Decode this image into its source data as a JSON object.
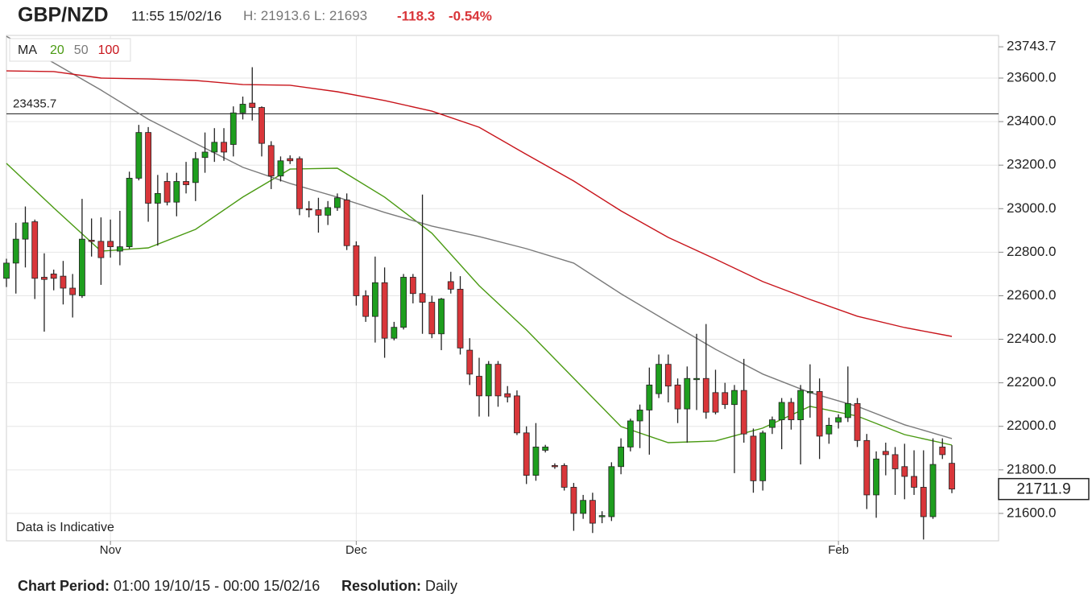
{
  "chart_data": {
    "type": "candlestick",
    "title": "GBP/NZD",
    "timestamp": "11:55 15/02/16",
    "high_prefix": "H:",
    "low_prefix": "L:",
    "change": -118.3,
    "change_pct": "-0.54%",
    "annotation": "Data is Indicative",
    "reference_line": 23435.7,
    "top_marker": 23743.7,
    "footer": {
      "period_label": "Chart Period:",
      "period": "01:00 19/10/15 - 00:00 15/02/16",
      "resolution_label": "Resolution:",
      "resolution": "Daily"
    },
    "categories": [
      null,
      null,
      null,
      null,
      null,
      null,
      null,
      null,
      null,
      null,
      null,
      "Nov",
      null,
      null,
      null,
      null,
      null,
      null,
      null,
      null,
      null,
      null,
      null,
      null,
      null,
      null,
      null,
      null,
      null,
      null,
      null,
      null,
      null,
      null,
      null,
      null,
      null,
      "Dec",
      null,
      null,
      null,
      null,
      null,
      null,
      null,
      null,
      null,
      null,
      null,
      null,
      null,
      null,
      null,
      null,
      null,
      null,
      null,
      null,
      null,
      null,
      null,
      null,
      null,
      null,
      null,
      null,
      null,
      null,
      null,
      null,
      null,
      null,
      null,
      null,
      null,
      null,
      null,
      null,
      null,
      null,
      null,
      null,
      null,
      null,
      null,
      null,
      null,
      null,
      "Feb",
      null,
      null,
      null,
      null,
      null,
      null,
      null,
      null,
      null,
      null,
      null,
      null
    ],
    "open": [
      22680,
      22750,
      22860,
      22940,
      22685,
      22700,
      22690,
      22635,
      22600,
      22855,
      22850,
      22850,
      22805,
      22825,
      23140,
      23350,
      23025,
      23125,
      23030,
      23125,
      23120,
      23235,
      23260,
      23305,
      23295,
      23440,
      23485,
      23465,
      23290,
      23150,
      23230,
      23230,
      23000,
      22995,
      22970,
      23005,
      23040,
      22830,
      22600,
      22505,
      22660,
      22405,
      22455,
      22685,
      22610,
      22570,
      22425,
      22665,
      22630,
      22350,
      22230,
      22140,
      22285,
      22150,
      22140,
      21970,
      21775,
      21890,
      21820,
      21820,
      21720,
      21600,
      21660,
      21585,
      21585,
      21815,
      21905,
      22025,
      22075,
      22150,
      22285,
      22190,
      22080,
      22215,
      22220,
      22155,
      22155,
      22100,
      22165,
      21955,
      21750,
      21995,
      22030,
      22110,
      22030,
      22160,
      22160,
      21965,
      22020,
      22040,
      22105,
      21935,
      21685,
      21885,
      21870,
      21815,
      21770,
      21720,
      21585,
      21905,
      21830.2
    ],
    "high": [
      22770,
      22935,
      23010,
      22950,
      22795,
      22720,
      22760,
      22700,
      23045,
      22955,
      22960,
      22950,
      22990,
      23170,
      23385,
      23375,
      23155,
      23165,
      23165,
      23215,
      23260,
      23350,
      23370,
      23370,
      23470,
      23515,
      23650,
      23470,
      23310,
      23240,
      23245,
      23240,
      23035,
      23050,
      23035,
      23070,
      23070,
      22850,
      22625,
      22780,
      22730,
      22480,
      22700,
      22700,
      23065,
      22600,
      22590,
      22710,
      22690,
      22405,
      22315,
      22300,
      22300,
      22185,
      22165,
      22000,
      22015,
      21915,
      21830,
      21830,
      21740,
      21685,
      21695,
      21610,
      21835,
      21945,
      22035,
      22100,
      22270,
      22330,
      22330,
      22220,
      22275,
      22425,
      22470,
      22260,
      22200,
      22190,
      22310,
      21990,
      21980,
      22045,
      22130,
      22130,
      22190,
      22285,
      22220,
      22040,
      22055,
      22275,
      22130,
      21965,
      21885,
      21925,
      21905,
      21920,
      21890,
      21890,
      21945,
      21945,
      21913.6
    ],
    "low": [
      22640,
      22610,
      22730,
      22585,
      22435,
      22625,
      22560,
      22500,
      22590,
      22780,
      22650,
      22775,
      22740,
      22815,
      23130,
      22940,
      22830,
      23015,
      22965,
      23070,
      23035,
      23165,
      23215,
      23220,
      23240,
      23410,
      23405,
      23240,
      23090,
      23125,
      23205,
      22970,
      22960,
      22890,
      22925,
      22990,
      22810,
      22555,
      22480,
      22385,
      22315,
      22395,
      22445,
      22565,
      22425,
      22405,
      22350,
      22610,
      22330,
      22190,
      22045,
      22045,
      22090,
      22110,
      21960,
      21735,
      21750,
      21880,
      21805,
      21705,
      21520,
      21575,
      21510,
      21555,
      21565,
      21780,
      21885,
      21900,
      21870,
      22130,
      22110,
      22015,
      21925,
      22075,
      22035,
      22055,
      22080,
      21785,
      21925,
      21695,
      21705,
      21965,
      21895,
      21985,
      21825,
      22040,
      21850,
      21920,
      21990,
      22020,
      21905,
      21620,
      21580,
      21775,
      21685,
      21665,
      21685,
      21480,
      21575,
      21850,
      21693
    ],
    "close": [
      22750,
      22860,
      22935,
      22680,
      22675,
      22680,
      22635,
      22605,
      22860,
      22850,
      22775,
      22825,
      22825,
      23140,
      23350,
      23025,
      23070,
      23030,
      23125,
      23110,
      23230,
      23260,
      23305,
      23260,
      23440,
      23480,
      23465,
      23300,
      23150,
      23220,
      23220,
      23000,
      22995,
      22970,
      23005,
      23050,
      22830,
      22600,
      22505,
      22660,
      22405,
      22455,
      22685,
      22610,
      22570,
      22425,
      22585,
      22630,
      22360,
      22240,
      22140,
      22285,
      22140,
      22135,
      21970,
      21775,
      21905,
      21905,
      21815,
      21720,
      21600,
      21660,
      21555,
      21590,
      21815,
      21905,
      22025,
      22075,
      22190,
      22285,
      22185,
      22080,
      22220,
      22220,
      22065,
      22065,
      22100,
      22165,
      21965,
      21750,
      21970,
      22030,
      22110,
      22030,
      22165,
      22160,
      21955,
      22005,
      22040,
      22105,
      21935,
      21685,
      21850,
      21870,
      21805,
      21770,
      21720,
      21585,
      21825,
      21870,
      21711.9
    ],
    "up_color": "#1e9e1e",
    "down_color": "#d9363a",
    "ma": {
      "label": "MA",
      "series": [
        {
          "name": "20",
          "color": "#4a9a12",
          "x": [
            0,
            5,
            10,
            15,
            20,
            25,
            30,
            35,
            40,
            45,
            50,
            55,
            60,
            65,
            70,
            75,
            80,
            85,
            90,
            95,
            100
          ],
          "values": [
            23208,
            23004,
            22805,
            22820,
            22905,
            23053,
            23182,
            23186,
            23053,
            22887,
            22646,
            22443,
            22221,
            21999,
            21925,
            21933,
            21992,
            22092,
            22047,
            21962,
            21914
          ]
        },
        {
          "name": "50",
          "color": "#7a7a7a",
          "x": [
            0,
            5,
            10,
            15,
            20,
            25,
            30,
            35,
            40,
            45,
            50,
            55,
            60,
            65,
            70,
            75,
            80,
            85,
            90,
            95,
            100
          ],
          "values": [
            23792,
            23670,
            23545,
            23411,
            23300,
            23190,
            23116,
            23053,
            22983,
            22920,
            22872,
            22816,
            22750,
            22609,
            22480,
            22354,
            22240,
            22155,
            22092,
            22007,
            21944
          ]
        },
        {
          "name": "100",
          "color": "#c8141b",
          "x": [
            0,
            5,
            10,
            15,
            20,
            25,
            30,
            35,
            40,
            45,
            50,
            55,
            60,
            65,
            70,
            75,
            80,
            85,
            90,
            95,
            100
          ],
          "values": [
            23633,
            23630,
            23600,
            23596,
            23589,
            23570,
            23567,
            23537,
            23497,
            23448,
            23374,
            23249,
            23127,
            22990,
            22868,
            22768,
            22665,
            22583,
            22506,
            22454,
            22413
          ]
        }
      ]
    },
    "ylim": [
      21474,
      23796
    ],
    "yticks": [
      {
        "value": 21600,
        "label": "21600.0"
      },
      {
        "value": 21800,
        "label": "21800.0"
      },
      {
        "value": 22000,
        "label": "22000.0"
      },
      {
        "value": 22200,
        "label": "22200.0"
      },
      {
        "value": 22400,
        "label": "22400.0"
      },
      {
        "value": 22600,
        "label": "22600.0"
      },
      {
        "value": 22800,
        "label": "22800.0"
      },
      {
        "value": 23000,
        "label": "23000.0"
      },
      {
        "value": 23200,
        "label": "23200.0"
      },
      {
        "value": 23400,
        "label": "23400.0"
      },
      {
        "value": 23600,
        "label": "23600.0"
      }
    ],
    "grid": true
  }
}
